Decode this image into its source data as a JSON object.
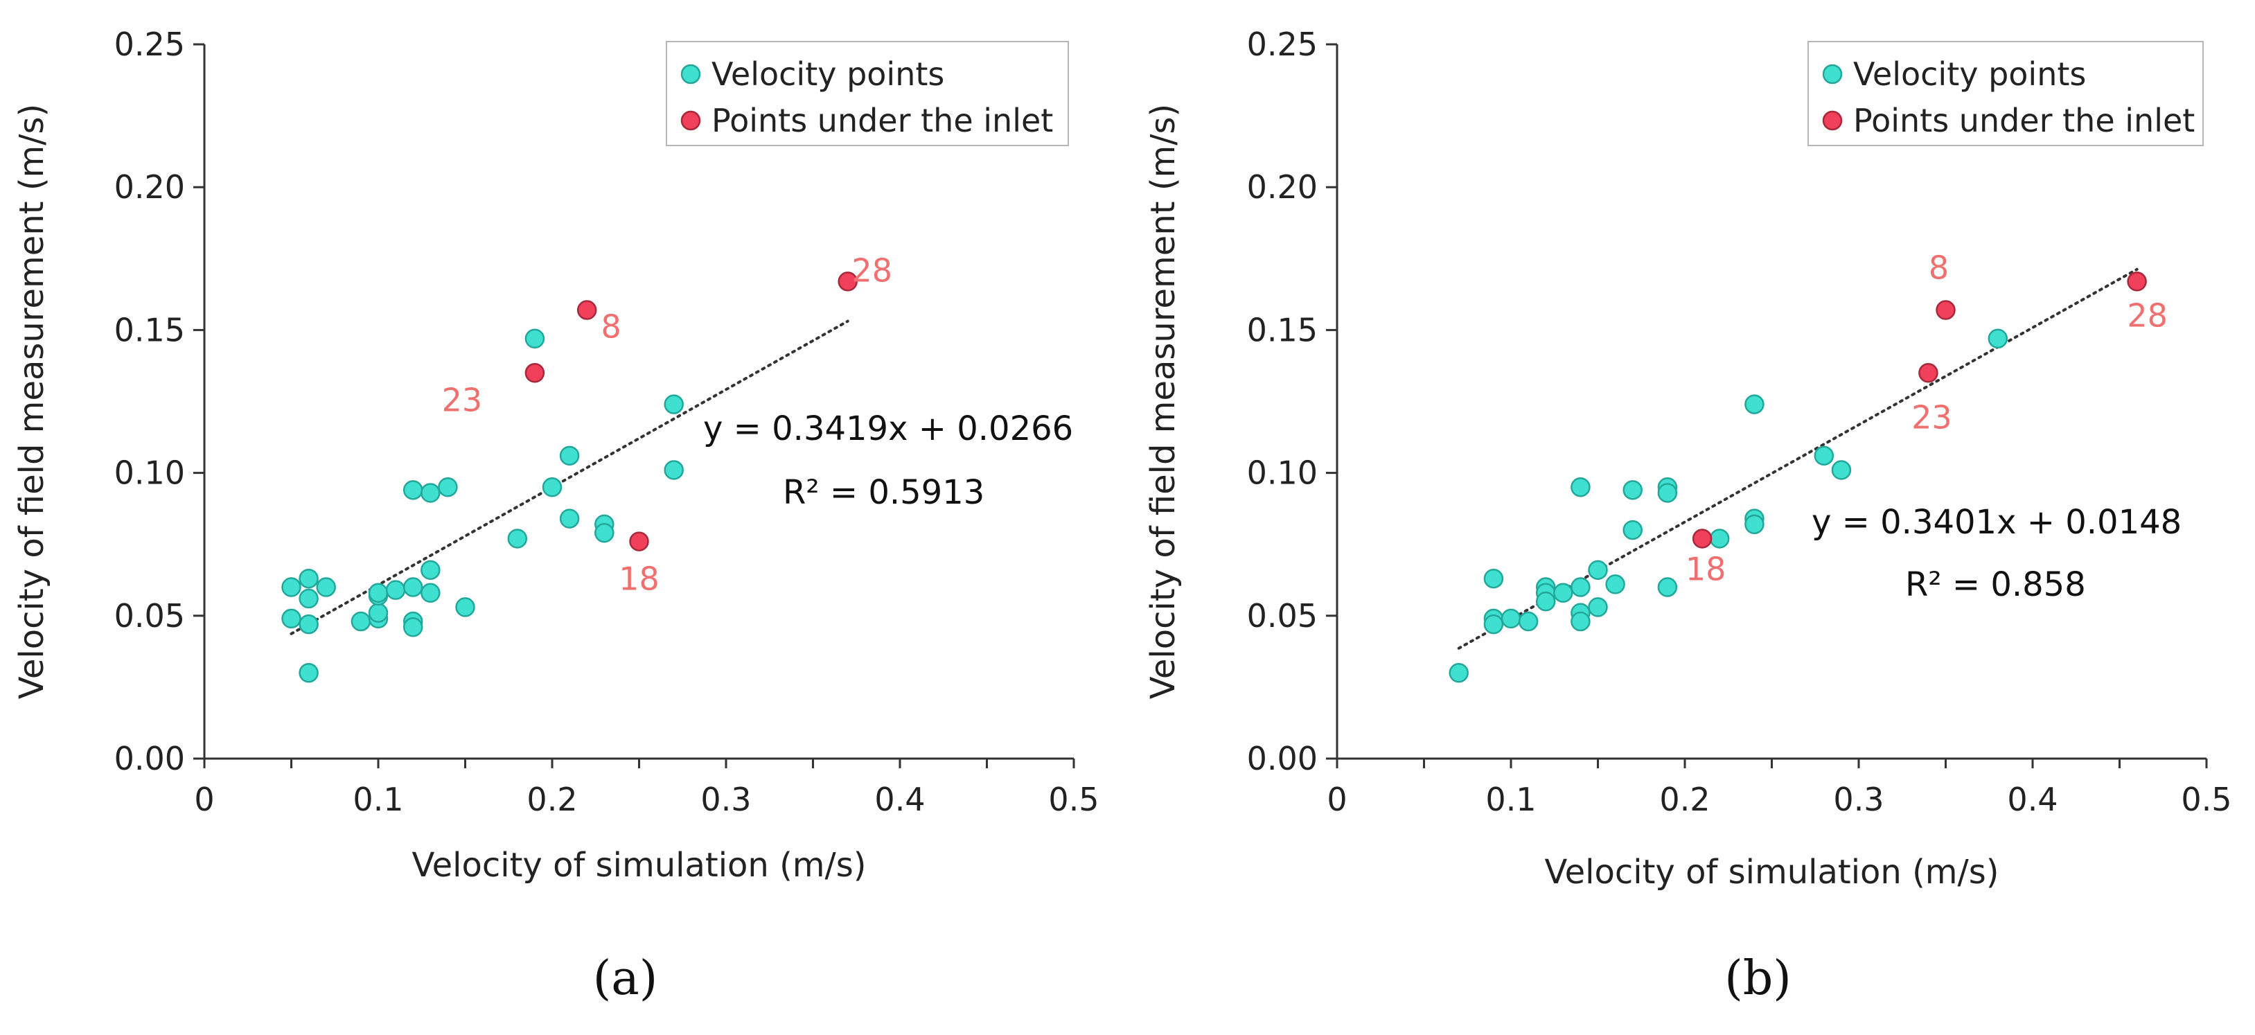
{
  "colors": {
    "velocity_fill": "#40E0D0",
    "velocity_stroke": "#22a89a",
    "inlet_fill": "#F0405A",
    "inlet_stroke": "#a8283c",
    "annotation": "#F07070",
    "axis": "#333333",
    "trend": "#333333"
  },
  "chart_data": [
    {
      "type": "scatter",
      "panel_label": "(a)",
      "xlabel": "Velocity of simulation (m/s)",
      "ylabel": "Velocity of field measurement (m/s)",
      "xlim": [
        0,
        0.5
      ],
      "ylim": [
        0,
        0.25
      ],
      "x_ticks": [
        "0",
        "0.1",
        "0.2",
        "0.3",
        "0.4",
        "0.5"
      ],
      "y_ticks": [
        "0.00",
        "0.05",
        "0.10",
        "0.15",
        "0.20",
        "0.25"
      ],
      "legend": [
        "Velocity points",
        "Points under the inlet"
      ],
      "legend_position": "top-right",
      "series": [
        {
          "name": "Velocity points",
          "points": [
            [
              0.05,
              0.06
            ],
            [
              0.05,
              0.049
            ],
            [
              0.06,
              0.063
            ],
            [
              0.06,
              0.056
            ],
            [
              0.06,
              0.047
            ],
            [
              0.06,
              0.03
            ],
            [
              0.07,
              0.06
            ],
            [
              0.09,
              0.048
            ],
            [
              0.1,
              0.049
            ],
            [
              0.1,
              0.051
            ],
            [
              0.1,
              0.057
            ],
            [
              0.1,
              0.058
            ],
            [
              0.11,
              0.059
            ],
            [
              0.12,
              0.06
            ],
            [
              0.12,
              0.048
            ],
            [
              0.12,
              0.046
            ],
            [
              0.12,
              0.094
            ],
            [
              0.13,
              0.093
            ],
            [
              0.13,
              0.066
            ],
            [
              0.13,
              0.058
            ],
            [
              0.14,
              0.095
            ],
            [
              0.15,
              0.053
            ],
            [
              0.18,
              0.077
            ],
            [
              0.19,
              0.147
            ],
            [
              0.2,
              0.095
            ],
            [
              0.21,
              0.106
            ],
            [
              0.21,
              0.084
            ],
            [
              0.23,
              0.082
            ],
            [
              0.23,
              0.079
            ],
            [
              0.27,
              0.124
            ],
            [
              0.27,
              0.101
            ]
          ]
        },
        {
          "name": "Points under the inlet",
          "points": [
            [
              0.19,
              0.135
            ],
            [
              0.22,
              0.157
            ],
            [
              0.25,
              0.076
            ],
            [
              0.37,
              0.167
            ]
          ],
          "labels": [
            "23",
            "8",
            "18",
            "28"
          ]
        }
      ],
      "trendline": {
        "slope": 0.3419,
        "intercept": 0.0266,
        "x_range": [
          0.05,
          0.37
        ]
      },
      "equation": "y = 0.3419x + 0.0266",
      "r_squared": "R² = 0.5913"
    },
    {
      "type": "scatter",
      "panel_label": "(b)",
      "xlabel": "Velocity of simulation (m/s)",
      "ylabel": "Velocity of field measurement (m/s)",
      "xlim": [
        0,
        0.5
      ],
      "ylim": [
        0,
        0.25
      ],
      "x_ticks": [
        "0",
        "0.1",
        "0.2",
        "0.3",
        "0.4",
        "0.5"
      ],
      "y_ticks": [
        "0.00",
        "0.05",
        "0.10",
        "0.15",
        "0.20",
        "0.25"
      ],
      "legend": [
        "Velocity points",
        "Points under the inlet"
      ],
      "legend_position": "top-right",
      "series": [
        {
          "name": "Velocity points",
          "points": [
            [
              0.07,
              0.03
            ],
            [
              0.09,
              0.063
            ],
            [
              0.09,
              0.049
            ],
            [
              0.09,
              0.047
            ],
            [
              0.1,
              0.049
            ],
            [
              0.11,
              0.048
            ],
            [
              0.12,
              0.06
            ],
            [
              0.12,
              0.058
            ],
            [
              0.12,
              0.055
            ],
            [
              0.13,
              0.058
            ],
            [
              0.14,
              0.06
            ],
            [
              0.14,
              0.051
            ],
            [
              0.14,
              0.048
            ],
            [
              0.14,
              0.095
            ],
            [
              0.15,
              0.066
            ],
            [
              0.15,
              0.053
            ],
            [
              0.16,
              0.061
            ],
            [
              0.17,
              0.094
            ],
            [
              0.17,
              0.08
            ],
            [
              0.19,
              0.095
            ],
            [
              0.19,
              0.093
            ],
            [
              0.19,
              0.06
            ],
            [
              0.22,
              0.077
            ],
            [
              0.24,
              0.124
            ],
            [
              0.24,
              0.084
            ],
            [
              0.24,
              0.082
            ],
            [
              0.28,
              0.106
            ],
            [
              0.29,
              0.101
            ],
            [
              0.38,
              0.147
            ]
          ]
        },
        {
          "name": "Points under the inlet",
          "points": [
            [
              0.35,
              0.157
            ],
            [
              0.34,
              0.135
            ],
            [
              0.21,
              0.077
            ],
            [
              0.46,
              0.167
            ]
          ],
          "labels": [
            "8",
            "23",
            "18",
            "28"
          ]
        }
      ],
      "trendline": {
        "slope": 0.3401,
        "intercept": 0.0148,
        "x_range": [
          0.07,
          0.46
        ]
      },
      "equation": "y = 0.3401x + 0.0148",
      "r_squared": "R² = 0.858"
    }
  ]
}
